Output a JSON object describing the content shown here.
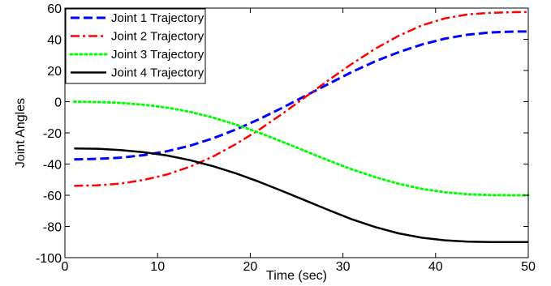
{
  "chart_data": {
    "type": "line",
    "title": "",
    "xlabel": "Time (sec)",
    "ylabel": "Joint Angles",
    "xlim": [
      0,
      50
    ],
    "ylim": [
      -100,
      60
    ],
    "xticks": [
      0,
      10,
      20,
      30,
      40,
      50
    ],
    "yticks": [
      -100,
      -80,
      -60,
      -40,
      -20,
      0,
      20,
      40,
      60
    ],
    "grid": false,
    "legend_position": "top-left",
    "x": [
      1,
      3.5,
      6,
      8.5,
      11,
      13.5,
      16,
      18.5,
      21,
      23.5,
      26,
      28.5,
      31,
      33.5,
      36,
      38.5,
      41,
      43.5,
      46,
      48.5,
      50
    ],
    "series": [
      {
        "name": "Joint 1 Trajectory",
        "color": "#0000ff",
        "dash": "dashed",
        "values": [
          -37,
          -36.7,
          -35.9,
          -34.3,
          -31.8,
          -28.2,
          -23.5,
          -17.7,
          -11.1,
          -3.8,
          3.9,
          11.6,
          19.1,
          25.9,
          31.7,
          36.6,
          40.4,
          43.0,
          44.4,
          45.0,
          45.0
        ]
      },
      {
        "name": "Joint 2 Trajectory",
        "color": "#ff0000",
        "dash": "dash-dot",
        "values": [
          -54,
          -53.6,
          -52.5,
          -50.2,
          -46.7,
          -41.7,
          -35.1,
          -27.0,
          -17.8,
          -7.6,
          3.2,
          14.0,
          24.4,
          34.0,
          42.2,
          48.9,
          53.4,
          56.0,
          57.0,
          57.4,
          57.5
        ]
      },
      {
        "name": "Joint 3 Trajectory",
        "color": "#00ff00",
        "dash": "dotted",
        "values": [
          0,
          -0.2,
          -0.8,
          -2.0,
          -3.8,
          -6.5,
          -10.2,
          -14.8,
          -20.0,
          -25.8,
          -31.8,
          -37.8,
          -43.5,
          -48.4,
          -52.6,
          -55.9,
          -58.1,
          -59.4,
          -59.9,
          -60.0,
          -60.0
        ]
      },
      {
        "name": "Joint 4 Trajectory",
        "color": "#000000",
        "dash": "solid",
        "values": [
          -30,
          -30.2,
          -31.0,
          -32.4,
          -34.5,
          -37.5,
          -41.4,
          -46.1,
          -51.5,
          -57.4,
          -63.5,
          -69.6,
          -75.5,
          -80.4,
          -84.4,
          -87.2,
          -88.9,
          -89.7,
          -90.0,
          -90.0,
          -90.0
        ]
      }
    ]
  }
}
